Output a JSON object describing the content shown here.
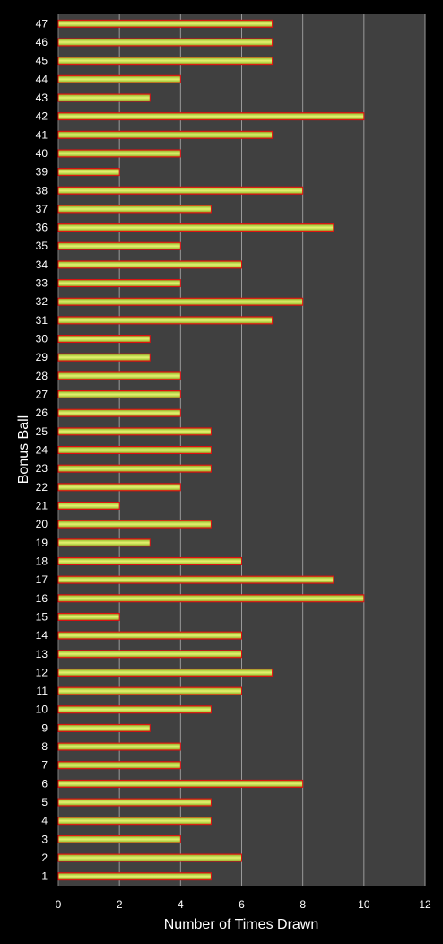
{
  "chart_data": {
    "type": "bar",
    "orientation": "horizontal",
    "xlabel": "Number of Times Drawn",
    "ylabel": "Bonus Ball",
    "xlim": [
      0,
      12
    ],
    "xticks": [
      0,
      2,
      4,
      6,
      8,
      10,
      12
    ],
    "grid": true,
    "categories": [
      "1",
      "2",
      "3",
      "4",
      "5",
      "6",
      "7",
      "8",
      "9",
      "10",
      "11",
      "12",
      "13",
      "14",
      "15",
      "16",
      "17",
      "18",
      "19",
      "20",
      "21",
      "22",
      "23",
      "24",
      "25",
      "26",
      "27",
      "28",
      "29",
      "30",
      "31",
      "32",
      "33",
      "34",
      "35",
      "36",
      "37",
      "38",
      "39",
      "40",
      "41",
      "42",
      "43",
      "44",
      "45",
      "46",
      "47"
    ],
    "values": [
      5,
      6,
      4,
      5,
      5,
      8,
      4,
      4,
      3,
      5,
      6,
      7,
      6,
      6,
      2,
      10,
      9,
      6,
      3,
      5,
      2,
      4,
      5,
      5,
      5,
      4,
      4,
      4,
      3,
      3,
      7,
      8,
      4,
      6,
      4,
      9,
      5,
      8,
      2,
      4,
      7,
      10,
      3,
      4,
      7,
      7,
      7
    ],
    "colors": {
      "background": "#000000",
      "plot_area": "#404040",
      "gridline": "#9a9a9a",
      "bar_edge": "#e01010",
      "bar_fill_center": "#e8f070",
      "bar_fill_mid": "#a8d040",
      "text": "#ffffff"
    }
  }
}
